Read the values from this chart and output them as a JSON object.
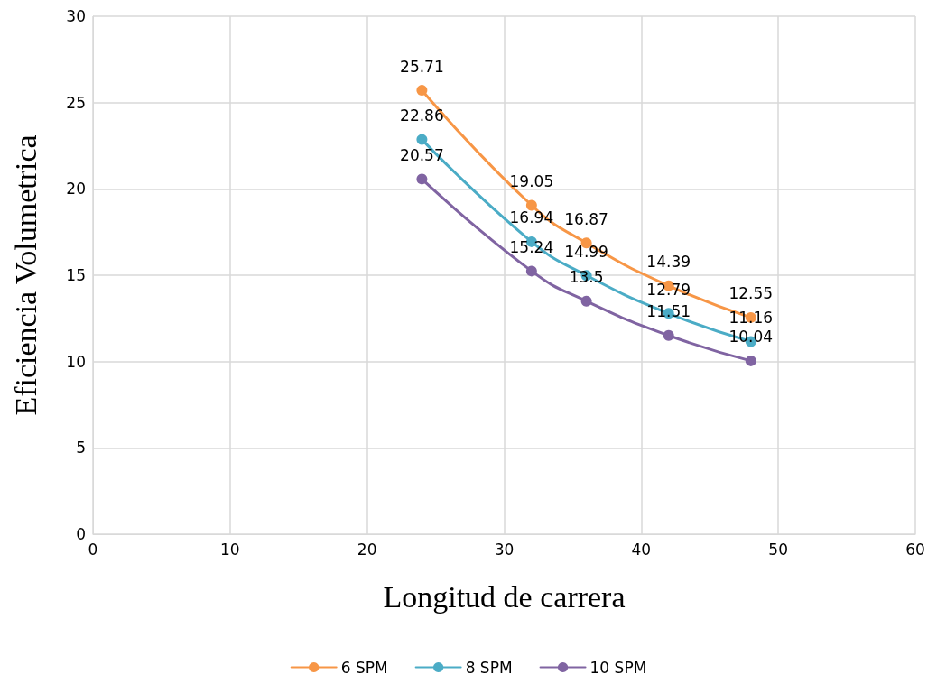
{
  "chart_data": {
    "type": "line",
    "xlabel": "Longitud de carrera",
    "ylabel": "Eficiencia Volumetrica",
    "x": [
      24,
      32,
      36,
      42,
      48
    ],
    "series": [
      {
        "name": "6 SPM",
        "color": "#f79646",
        "values": [
          25.71,
          19.05,
          16.87,
          14.39,
          12.55
        ]
      },
      {
        "name": "8 SPM",
        "color": "#4bacc6",
        "values": [
          22.86,
          16.94,
          14.99,
          12.79,
          11.16
        ]
      },
      {
        "name": "10 SPM",
        "color": "#8064a2",
        "values": [
          20.57,
          15.24,
          13.5,
          11.51,
          10.04
        ]
      }
    ],
    "xlim": [
      0,
      60
    ],
    "xticks": [
      0,
      10,
      20,
      30,
      40,
      50,
      60
    ],
    "ylim": [
      0,
      30
    ],
    "yticks": [
      0,
      5,
      10,
      15,
      20,
      25,
      30
    ],
    "grid": true,
    "legend": "bottom",
    "marker": "circle",
    "line_style": "solid",
    "data_labels": true
  }
}
